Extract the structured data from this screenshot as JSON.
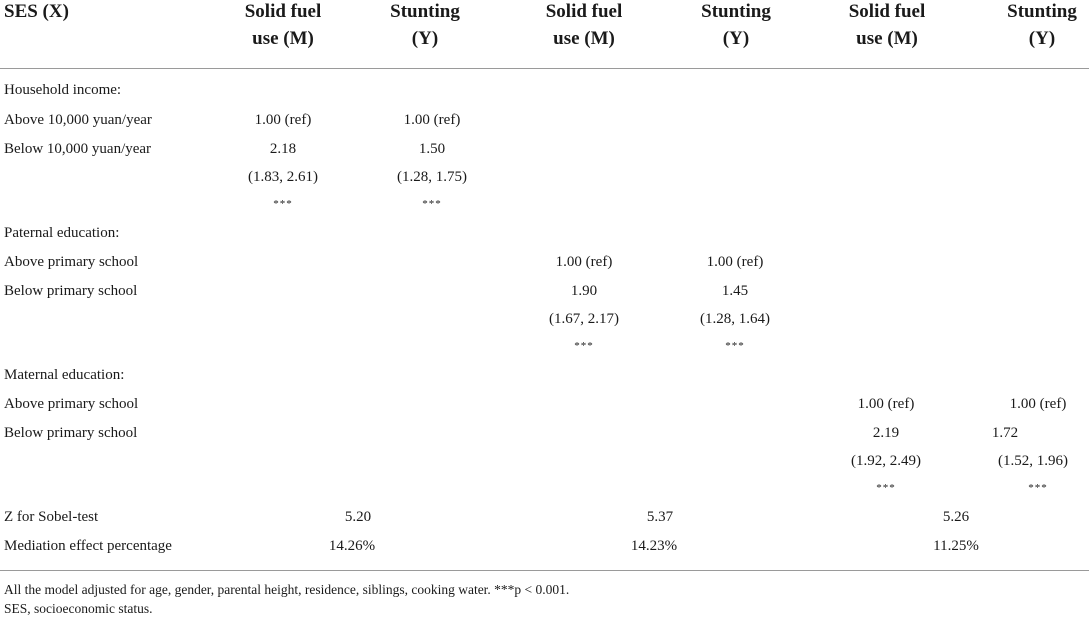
{
  "header": {
    "ses": "SES (X)",
    "solid_fuel": [
      "Solid fuel",
      "use (M)"
    ],
    "stunting": [
      "Stunting",
      "(Y)"
    ]
  },
  "rows": {
    "household_income": "Household income:",
    "above_10000": "Above 10,000 yuan/year",
    "below_10000": "Below 10,000 yuan/year",
    "paternal_education": "Paternal education:",
    "paternal_above": "Above primary school",
    "paternal_below": "Below primary school",
    "maternal_education": "Maternal education:",
    "maternal_above": "Above primary school",
    "maternal_below": "Below primary school",
    "sobel": "Z for Sobel-test",
    "mediation": "Mediation effect percentage"
  },
  "values": {
    "ref": "1.00 (ref)",
    "income_fuel_or": "2.18",
    "income_fuel_ci": "(1.83, 2.61)",
    "income_stunt_or": "1.50",
    "income_stunt_ci": "(1.28, 1.75)",
    "paternal_fuel_or": "1.90",
    "paternal_fuel_ci": "(1.67, 2.17)",
    "paternal_stunt_or": "1.45",
    "paternal_stunt_ci": "(1.28, 1.64)",
    "maternal_fuel_or": "2.19",
    "maternal_fuel_ci": "(1.92, 2.49)",
    "maternal_stunt_or": "1.72",
    "maternal_stunt_ci": "(1.52, 1.96)",
    "stars": "***",
    "sobel_income": "5.20",
    "sobel_paternal": "5.37",
    "sobel_maternal": "5.26",
    "mediation_income": "14.26%",
    "mediation_paternal": "14.23%",
    "mediation_maternal": "11.25%"
  },
  "footnotes": {
    "line1": "All the model adjusted for age, gender, parental height, residence, siblings, cooking water. ***p < 0.001.",
    "line2": "SES, socioeconomic status."
  }
}
